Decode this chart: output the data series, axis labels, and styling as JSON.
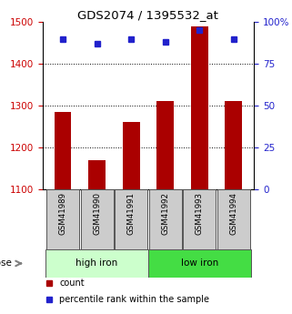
{
  "title": "GDS2074 / 1395532_at",
  "samples": [
    "GSM41989",
    "GSM41990",
    "GSM41991",
    "GSM41992",
    "GSM41993",
    "GSM41994"
  ],
  "bar_values": [
    1285,
    1170,
    1260,
    1310,
    1490,
    1310
  ],
  "percentile_values": [
    90,
    87,
    90,
    88,
    95,
    90
  ],
  "ylim_left": [
    1100,
    1500
  ],
  "ylim_right": [
    0,
    100
  ],
  "yticks_left": [
    1100,
    1200,
    1300,
    1400,
    1500
  ],
  "yticks_right": [
    0,
    25,
    50,
    75,
    100
  ],
  "ytick_labels_right": [
    "0",
    "25",
    "50",
    "75",
    "100%"
  ],
  "bar_color": "#aa0000",
  "square_color": "#2222cc",
  "group_labels": [
    "high iron",
    "low iron"
  ],
  "group_facecolors": [
    "#ccffcc",
    "#44dd44"
  ],
  "group_ranges": [
    [
      0,
      3
    ],
    [
      3,
      6
    ]
  ],
  "legend_items": [
    "count",
    "percentile rank within the sample"
  ],
  "label_color_left": "#cc0000",
  "label_color_right": "#2222cc",
  "sample_box_color": "#cccccc",
  "dose_arrow_color": "#888888"
}
